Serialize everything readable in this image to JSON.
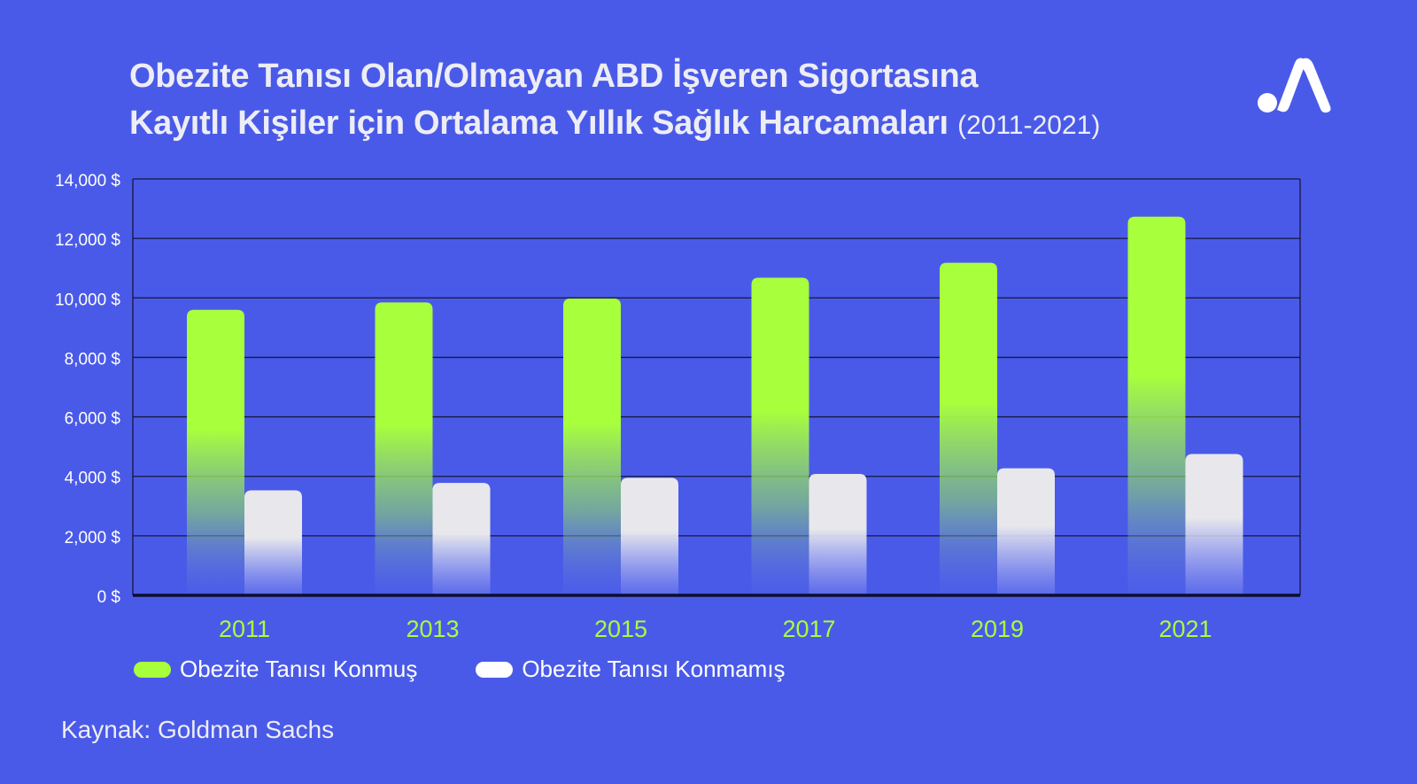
{
  "title": {
    "line1": "Obezite Tanısı Olan/Olmayan ABD İşveren Sigortasına",
    "line2": "Kayıtlı Kişiler için Ortalama Yıllık Sağlık Harcamaları",
    "subtitle": "(2011-2021)"
  },
  "logo": {
    "icon": "brand-logo-icon"
  },
  "colors": {
    "background": "#4a5ae8",
    "series_obese": "#a8ff3c",
    "series_non_obese": "#e6e6ea",
    "year_label": "#a8ff3c",
    "gridline": "#15183a"
  },
  "chart_data": {
    "type": "bar",
    "categories": [
      "2011",
      "2013",
      "2015",
      "2017",
      "2019",
      "2021"
    ],
    "series": [
      {
        "name": "Obezite Tanısı Konmuş",
        "values": [
          9600,
          9850,
          9980,
          10680,
          11180,
          12730
        ]
      },
      {
        "name": "Obezite Tanısı Konmamış",
        "values": [
          3530,
          3780,
          3950,
          4080,
          4270,
          4750
        ]
      }
    ],
    "yticks": [
      0,
      2000,
      4000,
      6000,
      8000,
      10000,
      12000,
      14000
    ],
    "ytick_labels": [
      "0 $",
      "2,000 $",
      "4,000 $",
      "6,000 $",
      "8,000 $",
      "10,000 $",
      "12,000 $",
      "14,000 $"
    ],
    "ylim": [
      0,
      14000
    ],
    "xlabel": "",
    "ylabel": "",
    "grid": true,
    "legend_position": "bottom-left"
  },
  "legend": [
    {
      "label": "Obezite Tanısı Konmuş"
    },
    {
      "label": "Obezite Tanısı Konmamış"
    }
  ],
  "source": "Kaynak: Goldman Sachs"
}
